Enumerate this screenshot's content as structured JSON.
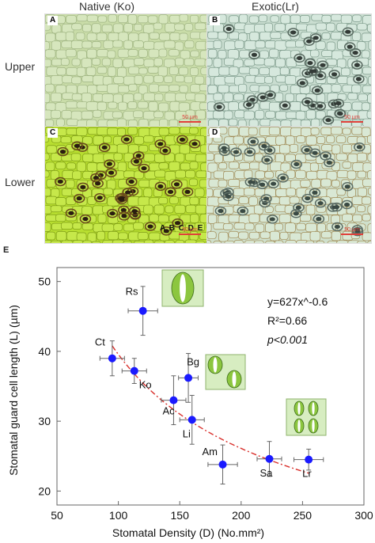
{
  "columns": {
    "native": "Native (Ko)",
    "exotic": "Exotic(Lr)"
  },
  "rows": {
    "upper": "Upper",
    "lower": "Lower"
  },
  "panels": {
    "a": {
      "letter": "A",
      "scale": "50 µm"
    },
    "b": {
      "letter": "B",
      "scale": "50 µm"
    },
    "c": {
      "letter": "C",
      "scale": "50 µm",
      "inset": "A B C D E"
    },
    "d": {
      "letter": "D",
      "scale": "50 µm"
    }
  },
  "figure_e_letter": "E",
  "colors": {
    "point": "#1a1aff",
    "fit": "#d9302c",
    "upper_native": "#c8dca6",
    "lower_native": "#b9e033",
    "exotic": "#cfe3d6"
  },
  "chart_data": {
    "type": "scatter",
    "xlabel": "Stomatal Density (D) (No.mm²)",
    "ylabel": "Stomatal guard cell length (L) (µm)",
    "xlim": [
      50,
      300
    ],
    "ylim": [
      18,
      52
    ],
    "xticks": [
      50,
      100,
      150,
      200,
      250,
      300
    ],
    "yticks": [
      20,
      30,
      40,
      50
    ],
    "points": [
      {
        "label": "Rs",
        "x": 120,
        "y": 45.8,
        "xerr": 12,
        "yerr": 3.5
      },
      {
        "label": "Ct",
        "x": 95,
        "y": 39.0,
        "xerr": 10,
        "yerr": 2.5
      },
      {
        "label": "Ko",
        "x": 113,
        "y": 37.2,
        "xerr": 10,
        "yerr": 1.8
      },
      {
        "label": "Bg",
        "x": 157,
        "y": 36.2,
        "xerr": 8,
        "yerr": 3.5
      },
      {
        "label": "Ac",
        "x": 145,
        "y": 33.0,
        "xerr": 10,
        "yerr": 3.5
      },
      {
        "label": "Li",
        "x": 160,
        "y": 30.2,
        "xerr": 10,
        "yerr": 3.5
      },
      {
        "label": "Am",
        "x": 185,
        "y": 23.8,
        "xerr": 12,
        "yerr": 2.8
      },
      {
        "label": "Sa",
        "x": 223,
        "y": 24.6,
        "xerr": 10,
        "yerr": 2.5
      },
      {
        "label": "Lr",
        "x": 255,
        "y": 24.5,
        "xerr": 12,
        "yerr": 1.5
      }
    ],
    "fit": {
      "a": 627,
      "b": -0.6,
      "x_range": [
        95,
        255
      ]
    },
    "annotations": {
      "equation": "y=627x^-0.6",
      "r2": "R²=0.66",
      "p": "p<0.001"
    }
  }
}
